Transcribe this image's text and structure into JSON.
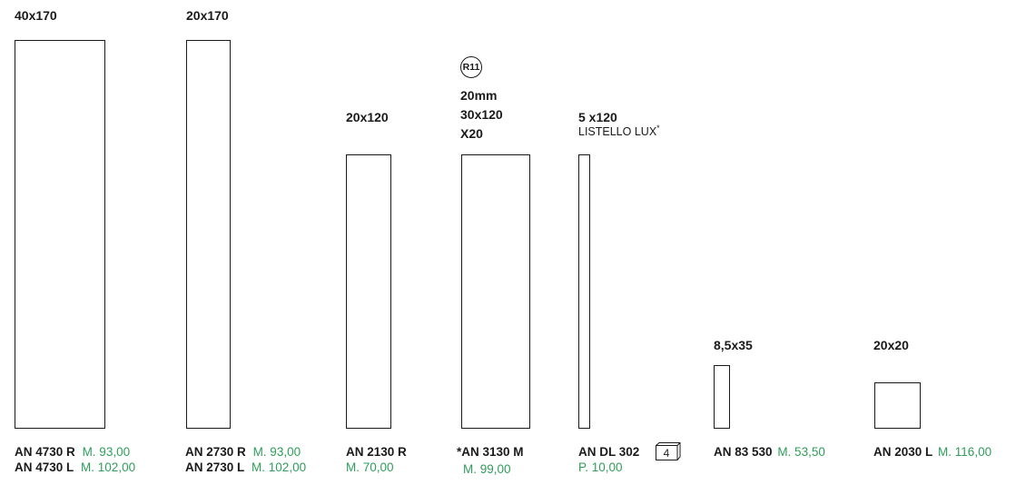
{
  "colors": {
    "text": "#1a1a1a",
    "price": "#2e9e5a"
  },
  "products": [
    {
      "size": "40x170",
      "codes": [
        {
          "code": "AN 4730 R",
          "price": "M. 93,00"
        },
        {
          "code": "AN 4730 L",
          "price": "M. 102,00"
        }
      ]
    },
    {
      "size": "20x170",
      "codes": [
        {
          "code": "AN 2730 R",
          "price": "M. 93,00"
        },
        {
          "code": "AN 2730 L",
          "price": "M. 102,00"
        }
      ]
    },
    {
      "size": "20x120",
      "codes": [
        {
          "code": "AN 2130 R",
          "price": "M. 70,00"
        }
      ]
    },
    {
      "badge": "R11",
      "size_lines": [
        "20mm",
        "30x120",
        "X20"
      ],
      "codes": [
        {
          "code": "*AN 3130 M",
          "price": "M. 99,00"
        }
      ]
    },
    {
      "size": "5 x120",
      "subtitle": "LISTELLO LUX",
      "subtitle_mark": "*",
      "codes": [
        {
          "code": "AN DL 302",
          "pack": "4",
          "pack_icon": "box-icon",
          "price": "P. 10,00"
        }
      ]
    },
    {
      "size": "8,5x35",
      "codes": [
        {
          "code": "AN 83 530",
          "price": "M. 53,50"
        }
      ]
    },
    {
      "size": "20x20",
      "codes": [
        {
          "code": "AN 2030 L",
          "price": "M. 116,00"
        }
      ]
    }
  ]
}
